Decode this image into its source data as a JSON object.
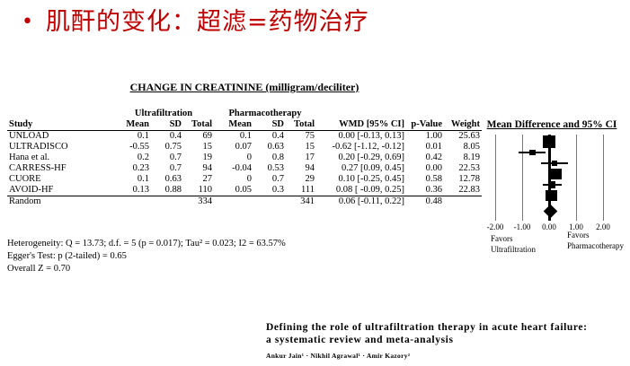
{
  "slide": {
    "bullet": "•",
    "title": "肌酐的变化：超滤=药物治疗",
    "title_color": "#c00000"
  },
  "table": {
    "title": "CHANGE IN CREATININE (milligram/deciliter)",
    "group_headers": {
      "left": "Ultrafiltration",
      "right": "Pharmacotherapy"
    },
    "columns": [
      "Study",
      "Mean",
      "SD",
      "Total",
      "Mean",
      "SD",
      "Total",
      "WMD [95% CI]",
      "p-Value",
      "Weight"
    ],
    "rows": [
      [
        "UNLOAD",
        "0.1",
        "0.4",
        "69",
        "0.1",
        "0.4",
        "75",
        "0.00 [-0.13, 0.13]",
        "1.00",
        "25.63"
      ],
      [
        "ULTRADISCO",
        "-0.55",
        "0.75",
        "15",
        "0.07",
        "0.63",
        "15",
        "-0.62 [-1.12, -0.12]",
        "0.01",
        "8.05"
      ],
      [
        "Hana et al.",
        "0.2",
        "0.7",
        "19",
        "0",
        "0.8",
        "17",
        "0.20 [-0.29, 0.69]",
        "0.42",
        "8.19"
      ],
      [
        "CARRESS-HF",
        "0.23",
        "0.7",
        "94",
        "-0.04",
        "0.53",
        "94",
        "0.27 [0.09, 0.45]",
        "0.00",
        "22.53"
      ],
      [
        "CUORE",
        "0.1",
        "0.63",
        "27",
        "0",
        "0.7",
        "29",
        "0.10 [-0.25, 0.45]",
        "0.58",
        "12.78"
      ],
      [
        "AVOID-HF",
        "0.13",
        "0.88",
        "110",
        "0.05",
        "0.3",
        "111",
        "0.08 [ -0.09, 0.25]",
        "0.36",
        "22.83"
      ]
    ],
    "summary_row": [
      "Random",
      "",
      "",
      "334",
      "",
      "",
      "341",
      "0.06 [-0.11, 0.22]",
      "0.48",
      ""
    ]
  },
  "stats": {
    "heterogeneity": "Heterogeneity: Q = 13.73; d.f. = 5 (p = 0.017); Tau² = 0.023; I2 = 63.57%",
    "eggers": "Egger's Test: p (2-tailed) = 0.65",
    "overall_z": "Overall Z = 0.70"
  },
  "chart_data": {
    "type": "forest",
    "title": "Mean Difference and 95% CI",
    "x_ticks": [
      -2,
      -1,
      0,
      1,
      2
    ],
    "tick_labels": [
      "-2.00",
      "-1.00",
      "0.00",
      "1.00",
      "2.00"
    ],
    "xlim": [
      -2.67,
      2.67
    ],
    "favors_left_1": "Favors",
    "favors_left_2": "Ultrafiltration",
    "favors_right_1": "Favors",
    "favors_right_2": "Pharmacotherapy",
    "studies": [
      {
        "name": "UNLOAD",
        "mean": 0.0,
        "lo": -0.13,
        "hi": 0.13,
        "weight": 25.63
      },
      {
        "name": "ULTRADISCO",
        "mean": -0.62,
        "lo": -1.12,
        "hi": -0.12,
        "weight": 8.05
      },
      {
        "name": "Hana et al.",
        "mean": 0.2,
        "lo": -0.29,
        "hi": 0.69,
        "weight": 8.19
      },
      {
        "name": "CARRESS-HF",
        "mean": 0.27,
        "lo": 0.09,
        "hi": 0.45,
        "weight": 22.53
      },
      {
        "name": "CUORE",
        "mean": 0.1,
        "lo": -0.25,
        "hi": 0.45,
        "weight": 12.78
      },
      {
        "name": "AVOID-HF",
        "mean": 0.08,
        "lo": -0.09,
        "hi": 0.25,
        "weight": 22.83
      }
    ],
    "summary": {
      "name": "Random",
      "mean": 0.06,
      "lo": -0.11,
      "hi": 0.22
    }
  },
  "citation": {
    "title_line1": "Defining the role of ultrafiltration therapy in acute heart failure:",
    "title_line2": "a systematic review and meta-analysis",
    "authors": "Ankur Jain¹ · Nikhil Agrawal¹ · Amir Kazory²"
  }
}
